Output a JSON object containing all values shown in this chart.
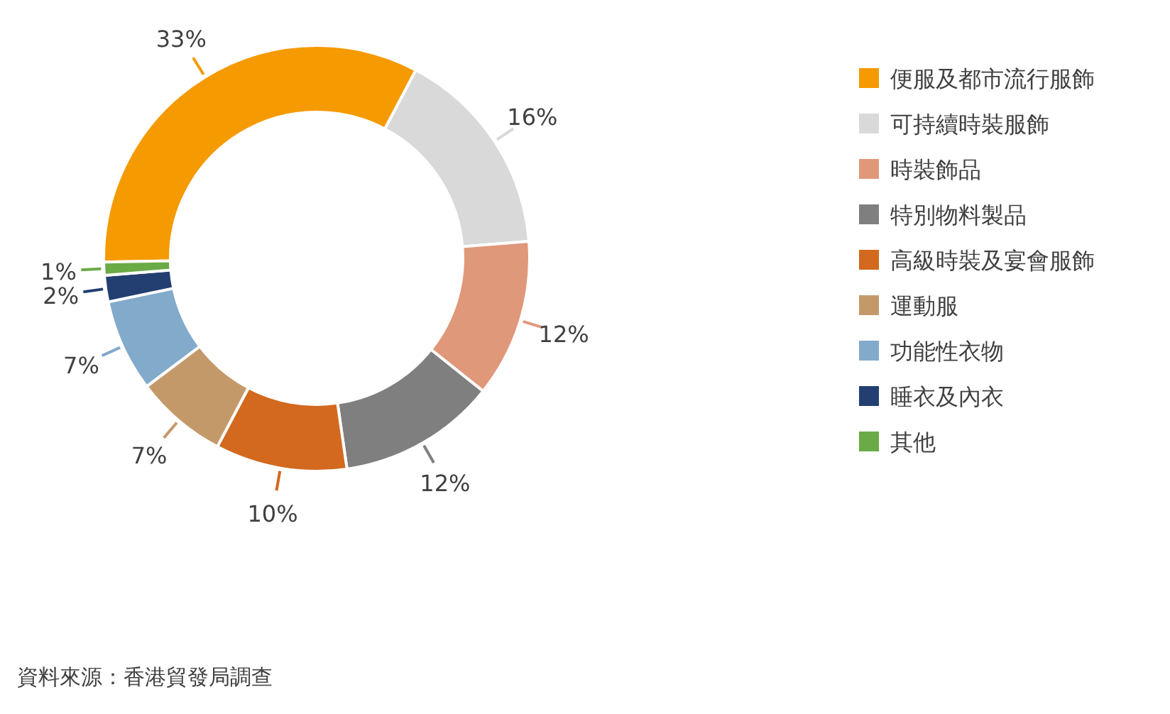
{
  "chart_data": {
    "type": "donut",
    "categories": [
      "便服及都市流行服飾",
      "可持續時裝服飾",
      "時裝飾品",
      "特別物料製品",
      "高級時裝及宴會服飾",
      "運動服",
      "功能性衣物",
      "睡衣及內衣",
      "其他"
    ],
    "values": [
      33,
      16,
      12,
      12,
      10,
      7,
      7,
      2,
      1
    ],
    "value_labels": [
      "33%",
      "16%",
      "12%",
      "12%",
      "10%",
      "7%",
      "7%",
      "2%",
      "1%"
    ],
    "colors": [
      "#f59a00",
      "#d9d9d9",
      "#e0987a",
      "#7f7f7f",
      "#d2691e",
      "#c4996a",
      "#82aacb",
      "#233f72",
      "#6aab45"
    ],
    "legend": "right",
    "annotations": [
      "資料來源：香港貿發局調查"
    ]
  }
}
